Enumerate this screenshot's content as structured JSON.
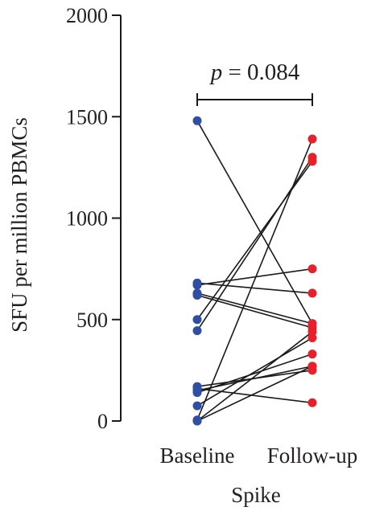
{
  "chart_data": {
    "type": "scatter",
    "subtype": "paired-before-after",
    "title": "",
    "xlabel": "Spike",
    "ylabel": "SFU per million PBMCs",
    "ylim": [
      0,
      2000
    ],
    "yticks": [
      0,
      500,
      1000,
      1500,
      2000
    ],
    "categories": [
      "Baseline",
      "Follow-up"
    ],
    "series": [
      {
        "color": "#2e4fa3",
        "values": [
          1480,
          680,
          670,
          630,
          620,
          500,
          445,
          170,
          160,
          150,
          140,
          75,
          5,
          0,
          0
        ]
      },
      {
        "color": "#e8202a",
        "values": [
          480,
          630,
          750,
          480,
          460,
          1280,
          1300,
          250,
          90,
          270,
          330,
          410,
          1390,
          440,
          270
        ]
      }
    ],
    "annotation": {
      "italic": "p",
      "text": " = 0.084"
    },
    "grid": false,
    "legend": "none"
  }
}
